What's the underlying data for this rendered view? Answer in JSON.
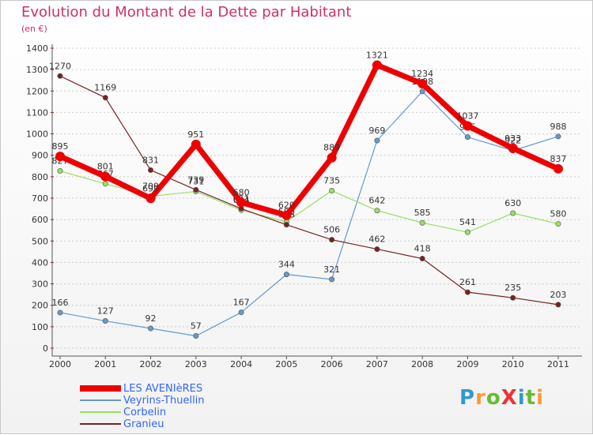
{
  "title": "Evolution du Montant de la Dette par Habitant",
  "unit": "(en €)",
  "logo": "ProXiti",
  "colors": {
    "title": "#cc3366",
    "legend_text": "#3366ff",
    "grid": "#cccccc",
    "axis": "#555555"
  },
  "chart_data": {
    "type": "line",
    "title": "Evolution du Montant de la Dette par Habitant",
    "subtitle": "(en €)",
    "x": [
      "2000",
      "2001",
      "2002",
      "2003",
      "2004",
      "2005",
      "2006",
      "2007",
      "2008",
      "2009",
      "2010",
      "2011"
    ],
    "yticks": [
      "0",
      "100",
      "200",
      "300",
      "400",
      "500",
      "600",
      "700",
      "800",
      "900",
      "1000",
      "1100",
      "1200",
      "1300",
      "1400"
    ],
    "ylim": [
      0,
      1400
    ],
    "grid": true,
    "legend_position": "bottom-left",
    "series": [
      {
        "name": "LES AVENIèRES",
        "color": "#ee0000",
        "values": [
          895,
          801,
          699,
          951,
          680,
          620,
          889,
          1321,
          1234,
          1037,
          933,
          837
        ]
      },
      {
        "name": "Veyrins-Thuellin",
        "color": "#6699cc",
        "values": [
          166,
          127,
          92,
          57,
          167,
          344,
          321,
          969,
          1198,
          985,
          922,
          988
        ]
      },
      {
        "name": "Corbelin",
        "color": "#99dd66",
        "values": [
          827,
          767,
          709,
          731,
          644,
          590,
          735,
          642,
          585,
          541,
          630,
          580
        ]
      },
      {
        "name": "Granieu",
        "color": "#772222",
        "values": [
          1270,
          1169,
          831,
          739,
          651,
          576,
          506,
          462,
          418,
          261,
          235,
          203
        ]
      }
    ]
  }
}
